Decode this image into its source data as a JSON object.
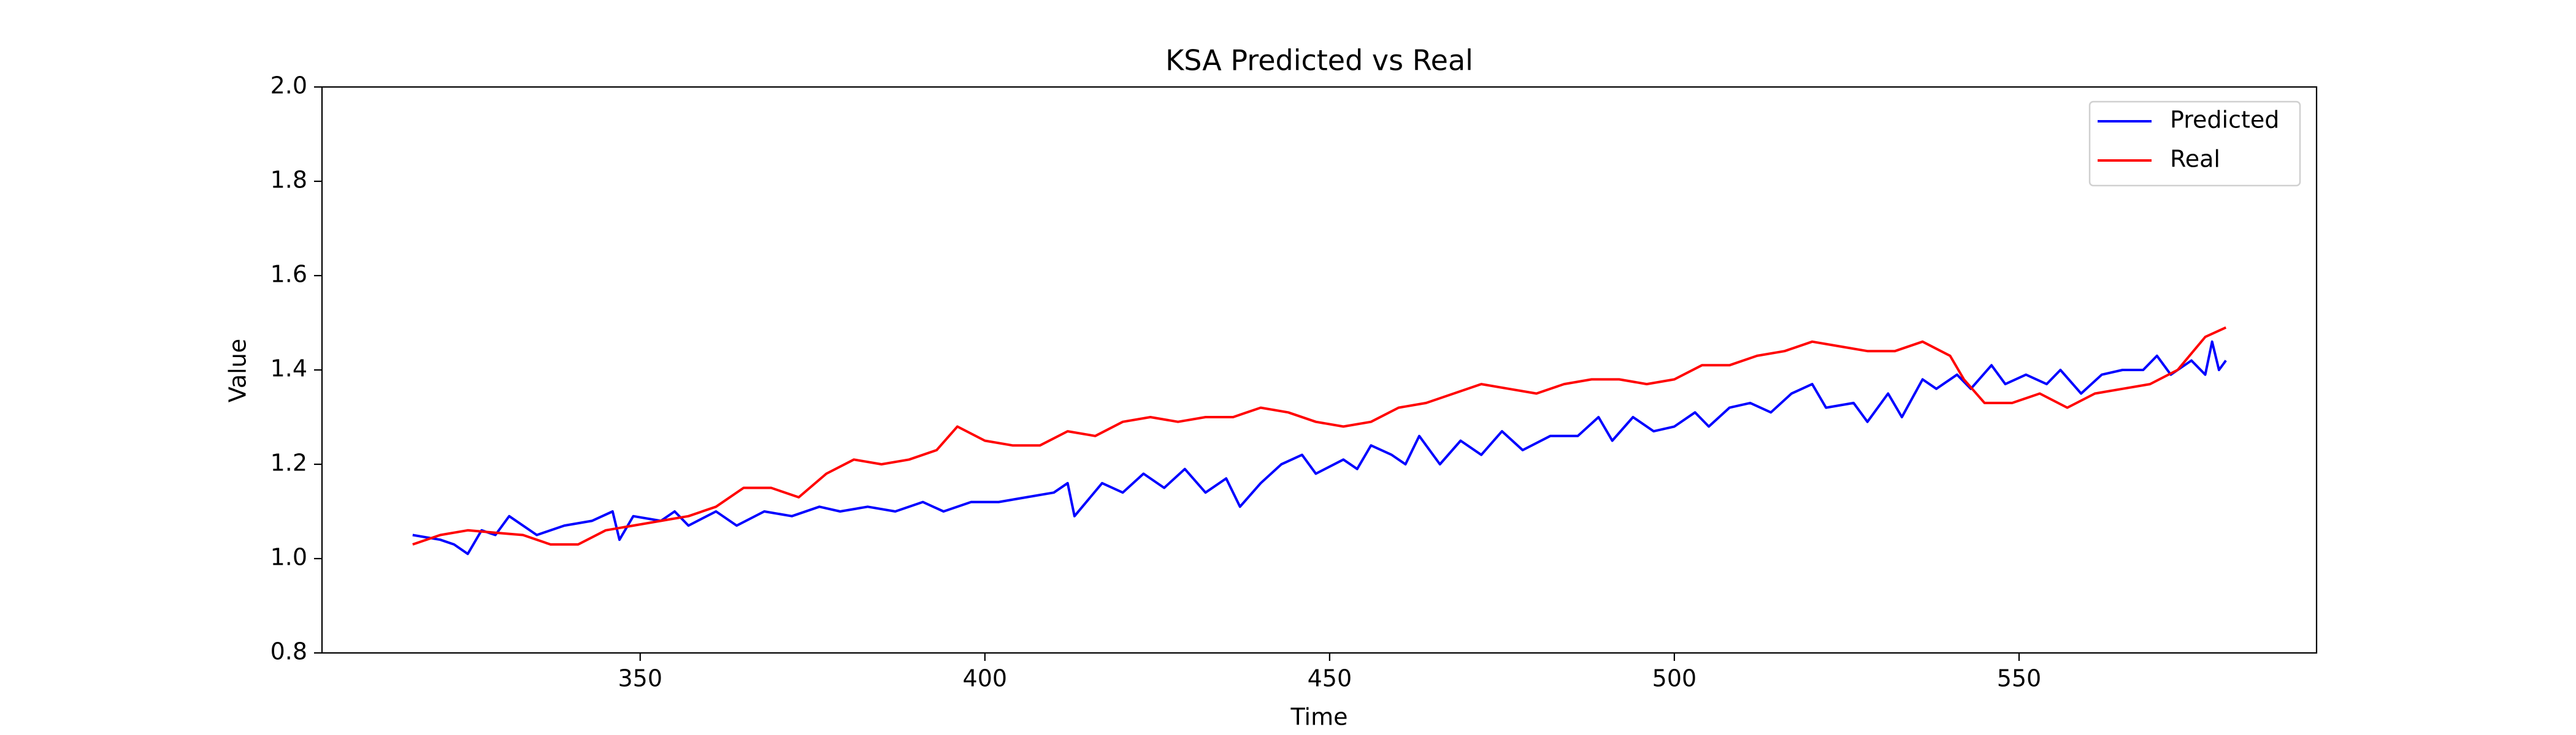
{
  "chart_data": {
    "type": "line",
    "title": "KSA Predicted vs Real",
    "xlabel": "Time",
    "ylabel": "Value",
    "xlim": [
      303.85,
      593.15
    ],
    "xticks": [
      350,
      400,
      450,
      500,
      550
    ],
    "ylim": [
      0.8,
      2.0
    ],
    "yticks": [
      0.8,
      {
        "value": 1,
        "label": "1.0"
      },
      1.2,
      1.4,
      1.6,
      1.8,
      {
        "value": 2,
        "label": "2.0"
      }
    ],
    "grid": false,
    "legend": "upper right",
    "series": [
      {
        "name": "Predicted",
        "color": "#0000ff",
        "x": [
          317,
          321,
          323,
          325,
          327,
          329,
          331,
          335,
          339,
          343,
          346,
          347,
          349,
          353,
          355,
          357,
          361,
          364,
          368,
          372,
          376,
          379,
          383,
          387,
          391,
          394,
          398,
          402,
          406,
          410,
          412,
          413,
          417,
          420,
          423,
          426,
          429,
          432,
          435,
          437,
          440,
          443,
          446,
          448,
          452,
          454,
          456,
          459,
          461,
          463,
          466,
          469,
          472,
          475,
          478,
          482,
          486,
          489,
          491,
          494,
          497,
          500,
          503,
          505,
          508,
          511,
          514,
          517,
          520,
          522,
          526,
          528,
          531,
          533,
          536,
          538,
          541,
          543,
          546,
          548,
          551,
          554,
          556,
          559,
          562,
          565,
          568,
          570,
          572,
          575,
          577,
          578,
          579,
          580
        ],
        "values": [
          1.05,
          1.04,
          1.03,
          1.01,
          1.06,
          1.05,
          1.09,
          1.05,
          1.07,
          1.08,
          1.1,
          1.04,
          1.09,
          1.08,
          1.1,
          1.07,
          1.1,
          1.07,
          1.1,
          1.09,
          1.11,
          1.1,
          1.11,
          1.1,
          1.12,
          1.1,
          1.12,
          1.12,
          1.13,
          1.14,
          1.16,
          1.09,
          1.16,
          1.14,
          1.18,
          1.15,
          1.19,
          1.14,
          1.17,
          1.11,
          1.16,
          1.2,
          1.22,
          1.18,
          1.21,
          1.19,
          1.24,
          1.22,
          1.2,
          1.26,
          1.2,
          1.25,
          1.22,
          1.27,
          1.23,
          1.26,
          1.26,
          1.3,
          1.25,
          1.3,
          1.27,
          1.28,
          1.31,
          1.28,
          1.32,
          1.33,
          1.31,
          1.35,
          1.37,
          1.32,
          1.33,
          1.29,
          1.35,
          1.3,
          1.38,
          1.36,
          1.39,
          1.36,
          1.41,
          1.37,
          1.39,
          1.37,
          1.4,
          1.35,
          1.39,
          1.4,
          1.4,
          1.43,
          1.39,
          1.42,
          1.39,
          1.46,
          1.4,
          1.42
        ]
      },
      {
        "name": "Real",
        "color": "#ff0000",
        "x": [
          317,
          321,
          325,
          329,
          333,
          337,
          341,
          345,
          349,
          353,
          357,
          361,
          365,
          369,
          373,
          377,
          381,
          385,
          389,
          393,
          396,
          400,
          404,
          408,
          412,
          416,
          420,
          424,
          428,
          432,
          436,
          440,
          444,
          448,
          452,
          456,
          460,
          464,
          468,
          472,
          476,
          480,
          484,
          488,
          492,
          496,
          500,
          504,
          508,
          512,
          516,
          520,
          524,
          528,
          532,
          536,
          540,
          542,
          545,
          549,
          553,
          557,
          561,
          565,
          569,
          573,
          577,
          580
        ],
        "values": [
          1.03,
          1.05,
          1.06,
          1.055,
          1.05,
          1.03,
          1.03,
          1.06,
          1.07,
          1.08,
          1.09,
          1.11,
          1.15,
          1.15,
          1.13,
          1.18,
          1.21,
          1.2,
          1.21,
          1.23,
          1.28,
          1.25,
          1.24,
          1.24,
          1.27,
          1.26,
          1.29,
          1.3,
          1.29,
          1.3,
          1.3,
          1.32,
          1.31,
          1.29,
          1.28,
          1.29,
          1.32,
          1.33,
          1.35,
          1.37,
          1.36,
          1.35,
          1.37,
          1.38,
          1.38,
          1.37,
          1.38,
          1.41,
          1.41,
          1.43,
          1.44,
          1.46,
          1.45,
          1.44,
          1.44,
          1.46,
          1.43,
          1.38,
          1.33,
          1.33,
          1.35,
          1.32,
          1.35,
          1.36,
          1.37,
          1.4,
          1.47,
          1.49
        ]
      }
    ]
  }
}
